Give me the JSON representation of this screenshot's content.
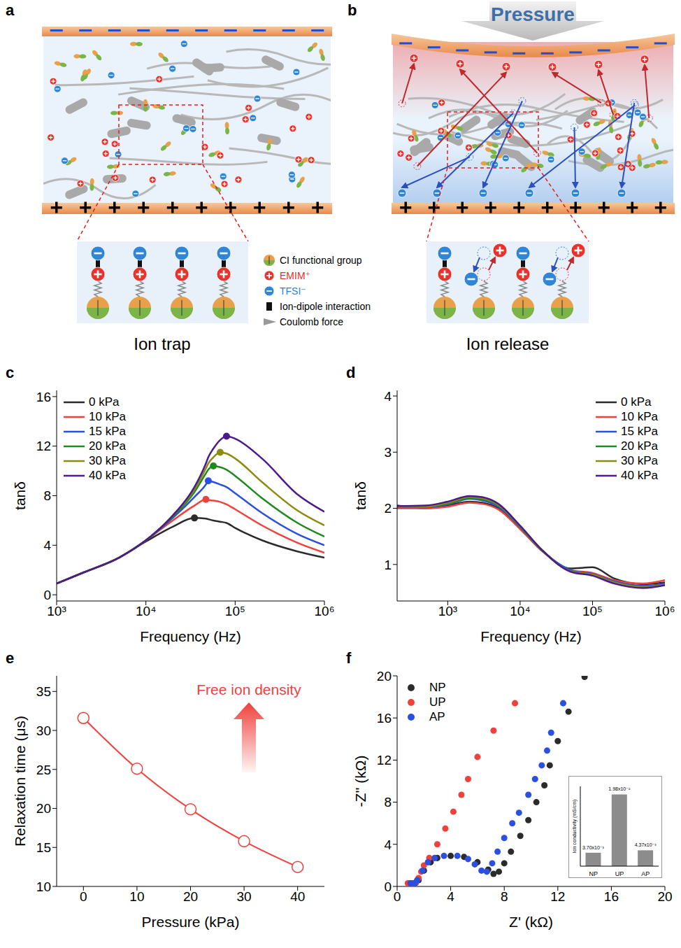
{
  "diagram": {
    "panels": [
      {
        "letter": "a",
        "caption": "Ion trap"
      },
      {
        "letter": "b",
        "arrow_label": "Pressure",
        "caption": "Ion release"
      }
    ],
    "key": [
      {
        "label": "CI functional group"
      },
      {
        "label": "EMIM⁺",
        "color": "#e0302a"
      },
      {
        "label": "TFSI⁻",
        "color": "#2a7fd4"
      },
      {
        "label": "Ion-dipole interaction"
      },
      {
        "label": "Coulomb force"
      }
    ]
  },
  "chart_data": [
    {
      "panel": "c",
      "type": "line",
      "x_label": "Frequency (Hz)",
      "y_label": "tanδ",
      "log": "x",
      "legend": "upper left",
      "x": [
        1000,
        2000,
        5000,
        10000,
        20000,
        35000,
        47000,
        50000,
        57000,
        68000,
        80000,
        100000,
        200000,
        500000,
        1000000
      ],
      "xlim": [
        1000,
        1000000
      ],
      "xticks": [
        {
          "value": 1000,
          "label": "10³"
        },
        {
          "value": 10000,
          "label": "10⁴"
        },
        {
          "value": 100000,
          "label": "10⁵"
        },
        {
          "value": 1000000,
          "label": "10⁶"
        }
      ],
      "ylim": [
        -0.5,
        16.5
      ],
      "yticks": [
        0,
        4,
        8,
        12,
        16
      ],
      "series": [
        {
          "name": "0 kPa",
          "color": "#2b2b2b",
          "values": [
            0.9,
            1.8,
            3.0,
            4.3,
            5.5,
            6.2,
            6.15,
            6.1,
            6.0,
            5.9,
            5.8,
            5.4,
            4.4,
            3.5,
            3.0
          ],
          "peak": {
            "x": 35000,
            "y": 6.2
          }
        },
        {
          "name": "10 kPa",
          "color": "#f0413c",
          "values": [
            0.9,
            1.8,
            3.0,
            4.4,
            6.0,
            7.2,
            7.7,
            7.65,
            7.6,
            7.5,
            7.3,
            6.9,
            5.6,
            4.2,
            3.4
          ],
          "peak": {
            "x": 47000,
            "y": 7.7
          }
        },
        {
          "name": "15 kPa",
          "color": "#2b4fe0",
          "values": [
            0.9,
            1.8,
            3.0,
            4.4,
            6.2,
            7.9,
            8.9,
            9.2,
            9.1,
            8.9,
            8.7,
            8.2,
            6.6,
            4.9,
            4.0
          ],
          "peak": {
            "x": 50000,
            "y": 9.2
          }
        },
        {
          "name": "20 kPa",
          "color": "#1e8a1e",
          "values": [
            0.9,
            1.8,
            3.0,
            4.4,
            6.3,
            8.3,
            9.8,
            10.1,
            10.4,
            10.3,
            10.1,
            9.6,
            7.8,
            5.8,
            4.7
          ],
          "peak": {
            "x": 57000,
            "y": 10.4
          }
        },
        {
          "name": "30 kPa",
          "color": "#8b8b10",
          "values": [
            0.9,
            1.8,
            3.0,
            4.4,
            6.4,
            8.5,
            10.2,
            10.6,
            11.1,
            11.5,
            11.4,
            11.0,
            9.1,
            6.8,
            5.6
          ],
          "peak": {
            "x": 68000,
            "y": 11.5
          }
        },
        {
          "name": "40 kPa",
          "color": "#4b1a8c",
          "values": [
            0.9,
            1.8,
            3.0,
            4.4,
            6.4,
            8.7,
            10.6,
            11.1,
            11.8,
            12.5,
            12.8,
            12.6,
            11.0,
            8.1,
            6.7
          ],
          "peak": {
            "x": 80000,
            "y": 12.8
          }
        }
      ]
    },
    {
      "panel": "d",
      "type": "line",
      "x_label": "Frequency (Hz)",
      "y_label": "tanδ",
      "log": "x",
      "legend": "upper right",
      "x": [
        200,
        500,
        1000,
        2000,
        3000,
        5000,
        10000,
        20000,
        50000,
        100000,
        200000,
        500000,
        1000000
      ],
      "xlim": [
        200,
        1000000
      ],
      "xticks": [
        {
          "value": 1000,
          "label": "10³"
        },
        {
          "value": 10000,
          "label": "10⁴"
        },
        {
          "value": 100000,
          "label": "10⁵"
        },
        {
          "value": 1000000,
          "label": "10⁶"
        }
      ],
      "ylim": [
        0.35,
        4.1
      ],
      "yticks": [
        1,
        2,
        3,
        4
      ],
      "series": [
        {
          "name": "0 kPa",
          "color": "#2b2b2b",
          "values": [
            2.05,
            2.0,
            2.05,
            2.12,
            2.1,
            2.0,
            1.65,
            1.25,
            0.93,
            0.95,
            0.75,
            0.65,
            0.68
          ]
        },
        {
          "name": "10 kPa",
          "color": "#f0413c",
          "values": [
            2.0,
            2.0,
            2.03,
            2.1,
            2.08,
            1.98,
            1.63,
            1.24,
            0.9,
            0.85,
            0.72,
            0.66,
            0.72
          ]
        },
        {
          "name": "15 kPa",
          "color": "#2b4fe0",
          "values": [
            2.02,
            2.02,
            2.07,
            2.17,
            2.14,
            2.03,
            1.66,
            1.25,
            0.9,
            0.83,
            0.7,
            0.62,
            0.66
          ]
        },
        {
          "name": "20 kPa",
          "color": "#1e8a1e",
          "values": [
            2.03,
            2.03,
            2.08,
            2.18,
            2.16,
            2.05,
            1.67,
            1.25,
            0.88,
            0.82,
            0.68,
            0.6,
            0.64
          ]
        },
        {
          "name": "30 kPa",
          "color": "#8b8b10",
          "values": [
            2.03,
            2.03,
            2.1,
            2.2,
            2.18,
            2.06,
            1.68,
            1.26,
            0.88,
            0.82,
            0.68,
            0.6,
            0.64
          ]
        },
        {
          "name": "40 kPa",
          "color": "#4b1a8c",
          "values": [
            2.04,
            2.05,
            2.12,
            2.22,
            2.2,
            2.08,
            1.69,
            1.26,
            0.87,
            0.8,
            0.66,
            0.58,
            0.63
          ]
        }
      ]
    },
    {
      "panel": "e",
      "type": "line",
      "x_label": "Pressure (kPa)",
      "y_label": "Relaxation time (μs)",
      "annotation": "Free ion density",
      "x": [
        0,
        10,
        20,
        30,
        40
      ],
      "values": [
        31.6,
        25.1,
        19.9,
        15.8,
        12.5
      ],
      "color": "#f0413c",
      "marker": "circle",
      "xlim": [
        -5,
        45
      ],
      "xticks": [
        0,
        10,
        20,
        30,
        40
      ],
      "ylim": [
        10,
        37
      ],
      "yticks": [
        10,
        15,
        20,
        25,
        30,
        35
      ]
    },
    {
      "panel": "f",
      "type": "scatter",
      "x_label": "Z' (kΩ)",
      "y_label": "-Z'' (kΩ)",
      "legend": "upper left",
      "xlim": [
        0,
        20
      ],
      "xticks": [
        0,
        4,
        8,
        12,
        16,
        20
      ],
      "ylim": [
        0,
        20
      ],
      "yticks": [
        0,
        4,
        8,
        12,
        16,
        20
      ],
      "series": [
        {
          "name": "NP",
          "color": "#2b2b2b",
          "x": [
            1.0,
            1.2,
            1.4,
            1.6,
            2.0,
            2.5,
            3.0,
            4.0,
            5.0,
            6.0,
            6.8,
            7.2,
            7.6,
            8.0,
            8.5,
            9.2,
            9.8,
            10.4,
            11.0,
            11.4,
            12.0,
            12.8,
            14.0
          ],
          "values": [
            0.3,
            0.3,
            0.35,
            0.6,
            1.5,
            2.3,
            2.7,
            2.9,
            2.8,
            2.3,
            1.6,
            1.2,
            1.4,
            2.2,
            3.3,
            4.8,
            6.3,
            8.0,
            9.6,
            11.5,
            13.8,
            16.6,
            19.9
          ]
        },
        {
          "name": "UP",
          "color": "#f0413c",
          "x": [
            0.8,
            1.0,
            1.2,
            1.4,
            1.6,
            1.8,
            2.0,
            2.4,
            3.0,
            3.6,
            4.2,
            4.8,
            5.3,
            6.0,
            7.2,
            8.8
          ],
          "values": [
            0.3,
            0.3,
            0.3,
            0.4,
            0.8,
            1.4,
            2.0,
            2.7,
            4.0,
            5.5,
            7.1,
            8.7,
            10.2,
            12.3,
            14.8,
            17.4
          ]
        },
        {
          "name": "AP",
          "color": "#2b4fe0",
          "x": [
            1.0,
            1.3,
            1.5,
            1.9,
            2.3,
            2.8,
            3.5,
            4.5,
            5.3,
            5.8,
            6.3,
            6.7,
            7.1,
            7.5,
            8.0,
            8.6,
            9.1,
            9.8,
            10.3,
            10.8,
            11.2,
            11.5,
            12.4
          ],
          "values": [
            0.3,
            0.3,
            0.6,
            1.5,
            2.3,
            2.7,
            2.9,
            2.9,
            2.6,
            2.1,
            1.5,
            1.4,
            2.2,
            3.3,
            4.6,
            6.0,
            7.0,
            8.7,
            10.2,
            11.5,
            12.9,
            14.6,
            17.4
          ]
        }
      ],
      "inset": {
        "type": "bar",
        "y_label": "Ion conductivity (mS/cm)",
        "categories": [
          "NP",
          "UP",
          "AP"
        ],
        "values": [
          0.0037,
          0.0198,
          0.00437
        ],
        "value_labels": [
          "3.70x10⁻³",
          "1.98x10⁻²",
          "4.37x10⁻³"
        ],
        "data_labels": true,
        "ylim": [
          0,
          0.022
        ],
        "tick_labels": "x",
        "color": "#8c8c8c"
      }
    }
  ]
}
